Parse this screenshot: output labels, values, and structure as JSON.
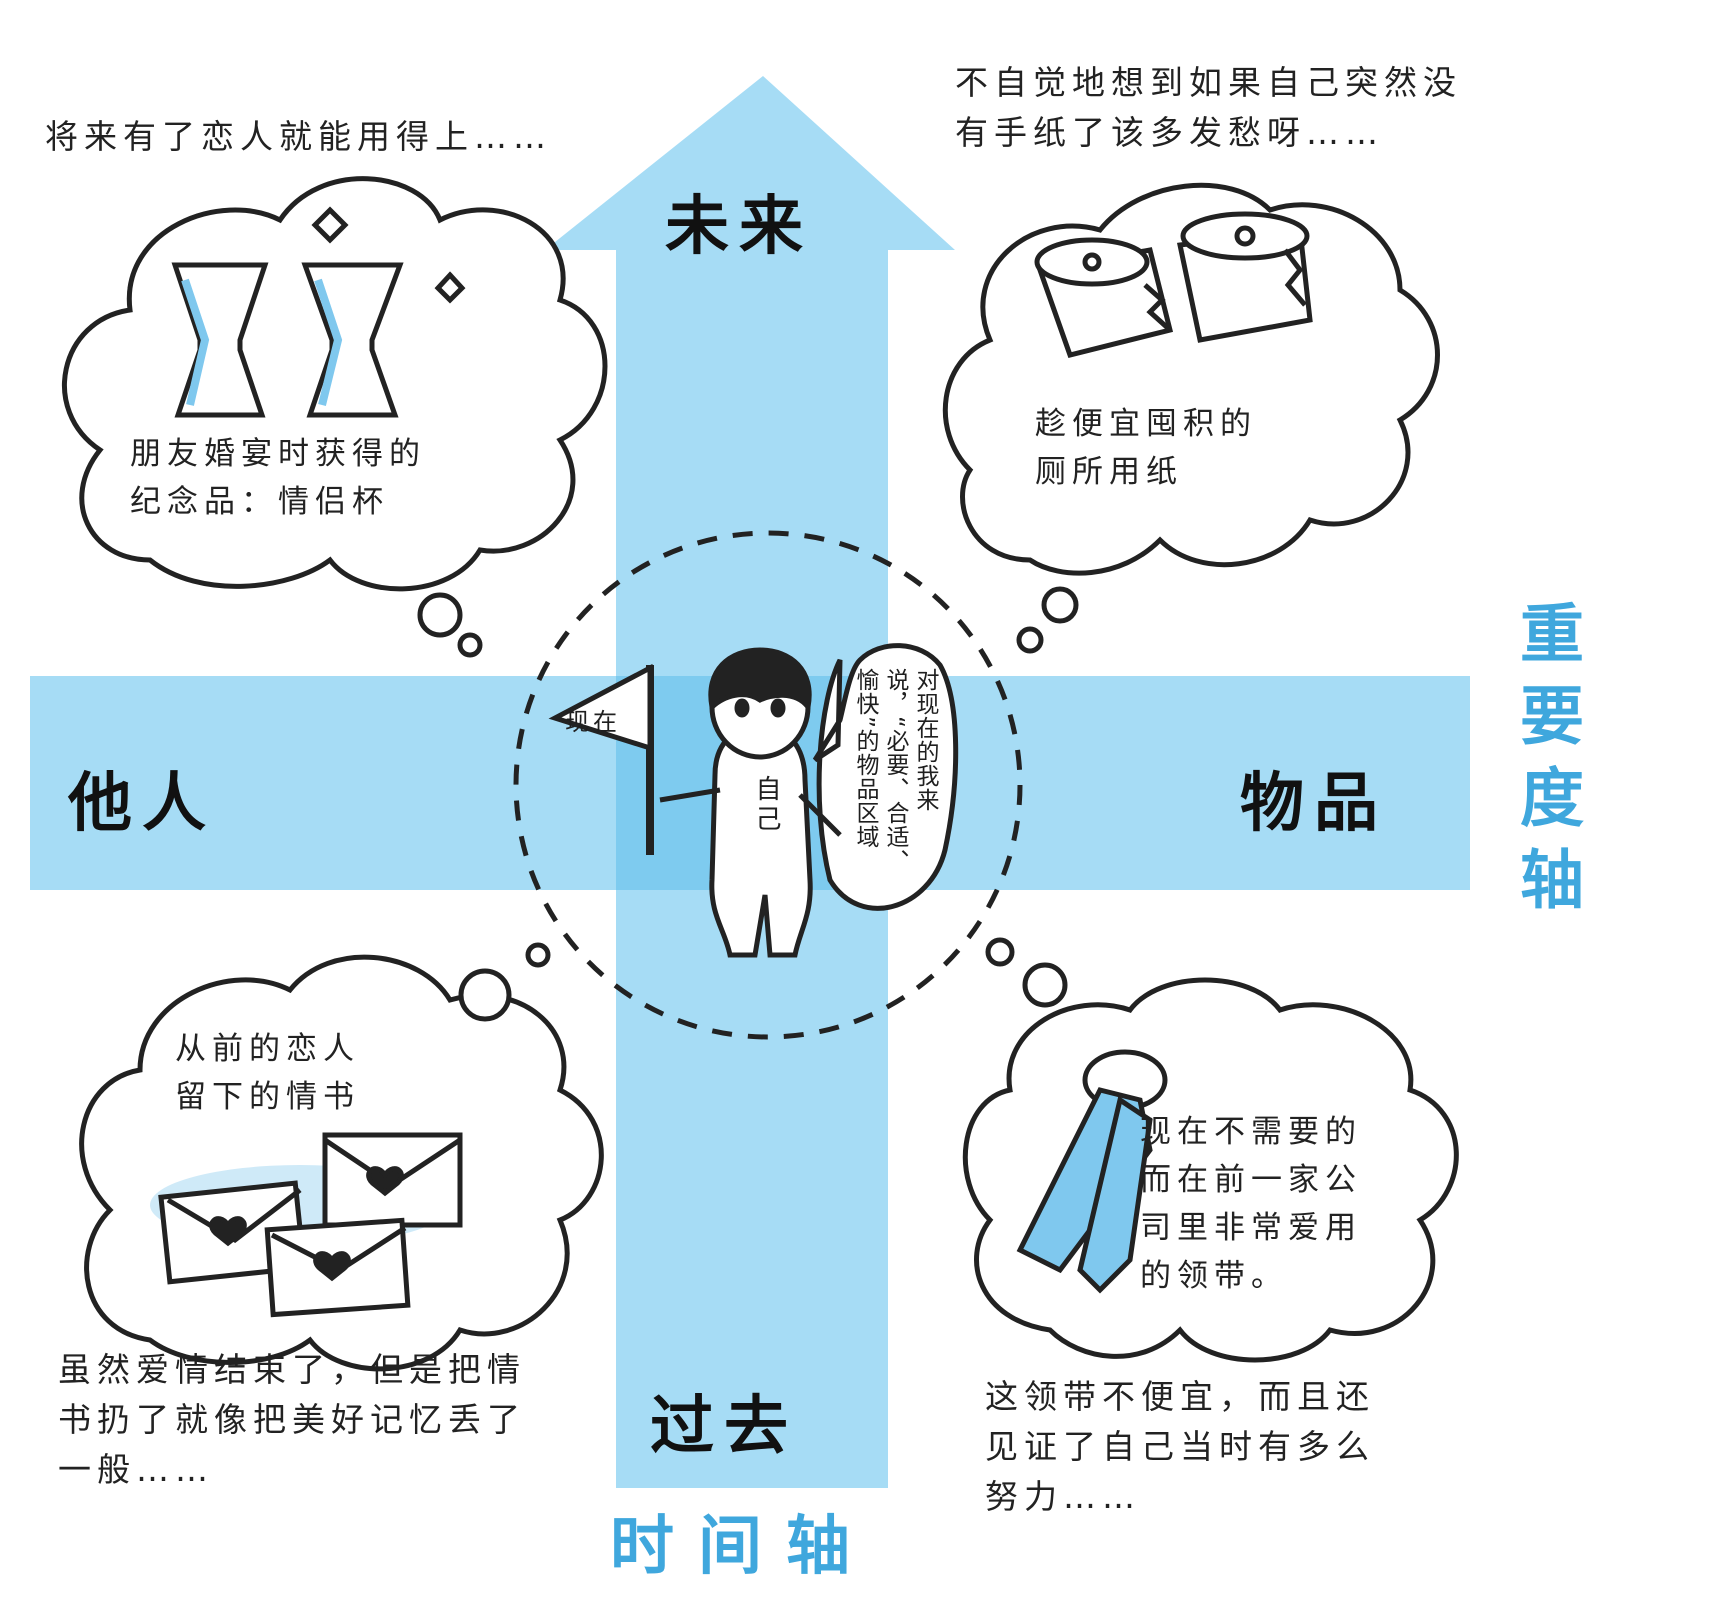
{
  "axes": {
    "time_axis": {
      "title": "时间轴",
      "top": "未来",
      "bottom": "过去"
    },
    "importance_axis": {
      "title": "重要度轴",
      "left": "他人",
      "right": "物品"
    }
  },
  "center": {
    "flag_label": "现在",
    "figure_label": "自己",
    "speech_lines": [
      "对现在的我来",
      "说，“必要、合适、",
      "愉快”的物品区域"
    ]
  },
  "quadrants": {
    "top_left": {
      "note_lines": [
        "将来有了恋人就能用得上……"
      ],
      "bubble_lines": [
        "朋友婚宴时获得的",
        "纪念品：情侣杯"
      ],
      "icon": "couple-glasses-icon"
    },
    "top_right": {
      "note_lines": [
        "不自觉地想到如果自己突然没",
        "有手纸了该多发愁呀……"
      ],
      "bubble_lines": [
        "趁便宜囤积的",
        "厕所用纸"
      ],
      "icon": "toilet-paper-icon"
    },
    "bottom_left": {
      "note_lines": [
        "虽然爱情结束了，但是把情",
        "书扔了就像把美好记忆丢了",
        "一般……"
      ],
      "bubble_lines": [
        "从前的恋人",
        "留下的情书"
      ],
      "icon": "love-letter-icon"
    },
    "bottom_right": {
      "note_lines": [
        "这领带不便宜，而且还",
        "见证了自己当时有多么",
        "努力……"
      ],
      "bubble_lines": [
        "现在不需要的",
        "而在前一家公",
        "司里非常爱用",
        "的领带。"
      ],
      "icon": "necktie-icon"
    }
  },
  "colors": {
    "axis_fill": "#a6dcf5",
    "axis_overlap": "#6ec3ec",
    "axis_title": "#3fa7dd",
    "icon_fill": "#7fc8ee"
  }
}
